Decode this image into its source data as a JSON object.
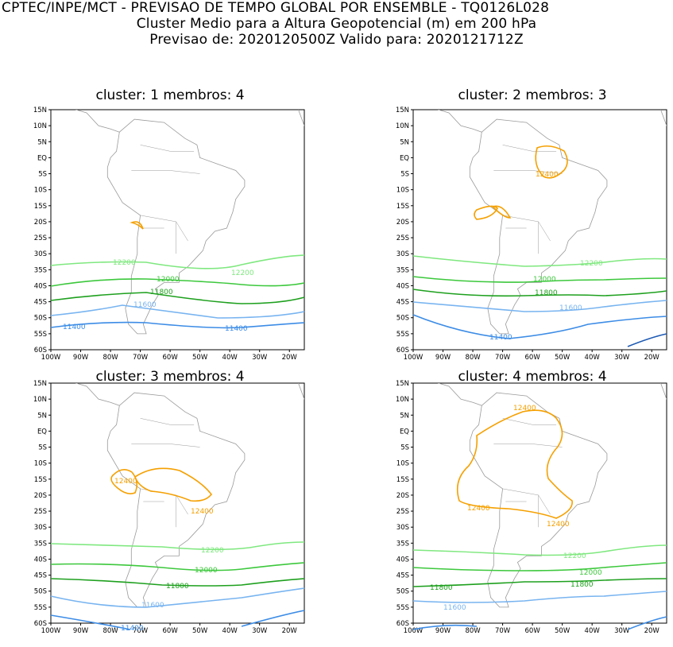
{
  "header": {
    "line1": "CPTEC/INPE/MCT - PREVISAO DE TEMPO GLOBAL POR ENSEMBLE - TQ0126L028",
    "line2": "Cluster Medio para a Altura Geopotencial (m) em 200 hPa",
    "line3": "Previsao de: 2020120500Z    Valido para: 2020121712Z"
  },
  "axes": {
    "lat_ticks": [
      "15N",
      "10N",
      "5N",
      "EQ",
      "5S",
      "10S",
      "15S",
      "20S",
      "25S",
      "30S",
      "35S",
      "40S",
      "45S",
      "50S",
      "55S",
      "60S"
    ],
    "lon_ticks": [
      "100W",
      "90W",
      "80W",
      "70W",
      "60W",
      "50W",
      "40W",
      "30W",
      "20W"
    ]
  },
  "colors": {
    "c12400": "#f5a000",
    "c12200": "#7fe87f",
    "c12000": "#3cc83c",
    "c11800": "#1ea01e",
    "c11600": "#78b4f0",
    "c11400": "#3c8ce6",
    "cdeep": "#1e5ab4",
    "land": "#9a9a9a"
  },
  "panels": [
    {
      "title": "cluster: 1   membros: 4",
      "labels": [
        "12200",
        "12200",
        "12000",
        "11800",
        "11600",
        "11400",
        "11400"
      ]
    },
    {
      "title": "cluster: 2   membros: 3",
      "labels": [
        "12400",
        "12200",
        "12000",
        "11800",
        "11600",
        "11400"
      ]
    },
    {
      "title": "cluster: 3   membros: 4",
      "labels": [
        "12400",
        "12400",
        "12200",
        "12000",
        "11800",
        "11600",
        "11400"
      ]
    },
    {
      "title": "cluster: 4   membros: 4",
      "labels": [
        "12400",
        "12400",
        "12400",
        "12200",
        "12000",
        "11800",
        "11800",
        "11600"
      ]
    }
  ]
}
